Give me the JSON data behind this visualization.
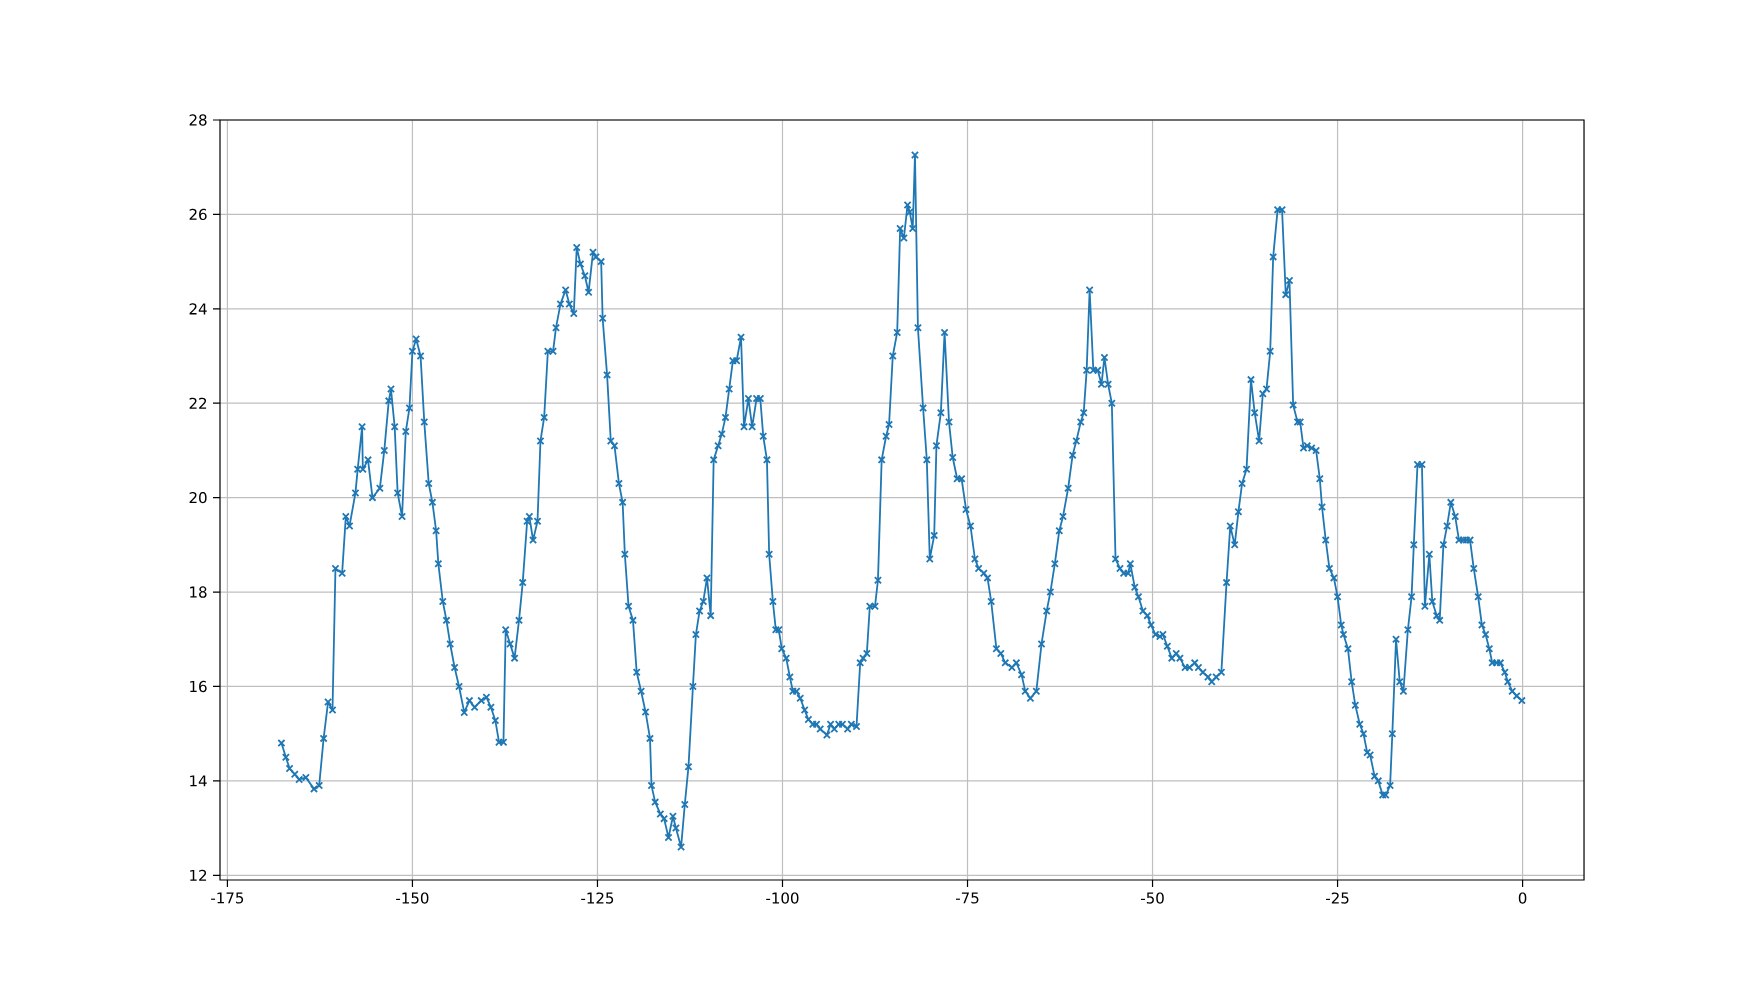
{
  "chart_data": {
    "type": "line",
    "color": "#1f77b4",
    "marker": "cross",
    "grid": true,
    "xlim": [
      -176,
      8.3
    ],
    "ylim": [
      11.9,
      28
    ],
    "xticks": [
      -175,
      -150,
      -125,
      -100,
      -75,
      -50,
      -25,
      0
    ],
    "yticks": [
      12,
      14,
      16,
      18,
      20,
      22,
      24,
      26,
      28
    ],
    "x": [
      -167.7,
      -167.1,
      -166.6,
      -165.9,
      -165.3,
      -164.4,
      -163.3,
      -162.6,
      -162.0,
      -161.4,
      -160.8,
      -160.4,
      -159.5,
      -159.0,
      -158.5,
      -157.7,
      -157.4,
      -156.8,
      -156.7,
      -156.0,
      -155.4,
      -154.4,
      -153.8,
      -153.2,
      -152.9,
      -152.4,
      -152.0,
      -151.4,
      -150.9,
      -150.4,
      -150.0,
      -149.5,
      -148.9,
      -148.4,
      -147.8,
      -147.3,
      -146.8,
      -146.5,
      -145.9,
      -145.4,
      -144.9,
      -144.3,
      -143.7,
      -143.0,
      -142.3,
      -141.6,
      -140.7,
      -140.0,
      -139.4,
      -138.8,
      -138.3,
      -137.7,
      -137.4,
      -136.8,
      -136.2,
      -135.6,
      -135.1,
      -134.5,
      -134.2,
      -133.7,
      -133.1,
      -132.7,
      -132.2,
      -131.7,
      -131.0,
      -130.6,
      -130.0,
      -129.3,
      -128.8,
      -128.2,
      -127.8,
      -127.3,
      -126.7,
      -126.2,
      -125.6,
      -125.2,
      -124.5,
      -124.3,
      -123.7,
      -123.2,
      -122.7,
      -122.1,
      -121.6,
      -121.3,
      -120.8,
      -120.2,
      -119.7,
      -119.1,
      -118.5,
      -117.9,
      -117.7,
      -117.2,
      -116.5,
      -116.0,
      -115.4,
      -114.8,
      -114.4,
      -113.7,
      -113.2,
      -112.7,
      -112.1,
      -111.7,
      -111.2,
      -110.7,
      -110.2,
      -109.7,
      -109.3,
      -108.7,
      -108.2,
      -107.7,
      -107.2,
      -106.7,
      -106.2,
      -105.6,
      -105.2,
      -104.6,
      -104.1,
      -103.5,
      -103.0,
      -102.6,
      -102.1,
      -101.8,
      -101.3,
      -100.9,
      -100.5,
      -100.1,
      -99.5,
      -99.0,
      -98.6,
      -98.1,
      -97.6,
      -97.0,
      -96.5,
      -95.9,
      -95.4,
      -94.9,
      -94.0,
      -93.5,
      -93.0,
      -92.4,
      -91.9,
      -91.2,
      -90.7,
      -90.0,
      -89.5,
      -89.1,
      -88.6,
      -88.2,
      -87.5,
      -87.1,
      -86.6,
      -86.0,
      -85.6,
      -85.1,
      -84.5,
      -84.1,
      -83.6,
      -83.1,
      -82.8,
      -82.4,
      -82.1,
      -81.7,
      -81.0,
      -80.5,
      -80.1,
      -79.5,
      -79.2,
      -78.6,
      -78.1,
      -77.5,
      -77.0,
      -76.4,
      -75.8,
      -75.2,
      -74.6,
      -74.0,
      -73.5,
      -72.8,
      -72.3,
      -71.8,
      -71.1,
      -70.5,
      -69.9,
      -69.0,
      -68.4,
      -67.7,
      -67.2,
      -66.5,
      -65.7,
      -65.0,
      -64.3,
      -63.8,
      -63.2,
      -62.6,
      -62.1,
      -61.4,
      -60.8,
      -60.3,
      -59.7,
      -59.3,
      -58.9,
      -58.5,
      -58.0,
      -57.4,
      -56.9,
      -56.5,
      -56.0,
      -55.5,
      -55.0,
      -54.4,
      -53.9,
      -53.3,
      -53.0,
      -52.4,
      -51.9,
      -51.3,
      -50.7,
      -50.2,
      -49.6,
      -49.0,
      -48.6,
      -48.0,
      -47.4,
      -46.8,
      -46.3,
      -45.6,
      -45.0,
      -44.3,
      -43.8,
      -43.2,
      -42.5,
      -42.0,
      -41.4,
      -40.7,
      -40.0,
      -39.5,
      -38.9,
      -38.4,
      -37.9,
      -37.3,
      -36.7,
      -36.2,
      -35.6,
      -35.1,
      -34.6,
      -34.1,
      -33.7,
      -33.1,
      -32.5,
      -32.0,
      -31.5,
      -31.0,
      -30.4,
      -30.05,
      -29.6,
      -29.1,
      -28.5,
      -27.9,
      -27.4,
      -27.1,
      -26.6,
      -26.1,
      -25.5,
      -25.0,
      -24.5,
      -24.2,
      -23.6,
      -23.1,
      -22.6,
      -22.0,
      -21.5,
      -21.0,
      -20.6,
      -20.0,
      -19.5,
      -18.9,
      -18.5,
      -17.9,
      -17.6,
      -17.1,
      -16.6,
      -16.1,
      -15.5,
      -15.0,
      -14.7,
      -14.2,
      -13.6,
      -13.2,
      -12.6,
      -12.2,
      -11.6,
      -11.2,
      -10.7,
      -10.2,
      -9.7,
      -9.1,
      -8.6,
      -8.0,
      -7.6,
      -7.1,
      -6.6,
      -6.0,
      -5.5,
      -5.0,
      -4.5,
      -4.1,
      -3.5,
      -3.0,
      -2.4,
      -2.0,
      -1.4,
      -0.8,
      -0.1
    ],
    "values": [
      14.8,
      14.5,
      14.26,
      14.14,
      14.03,
      14.07,
      13.83,
      13.9,
      14.9,
      15.67,
      15.5,
      18.5,
      18.4,
      19.6,
      19.4,
      20.1,
      20.6,
      21.5,
      20.6,
      20.8,
      20.0,
      20.2,
      21.0,
      22.05,
      22.3,
      21.5,
      20.1,
      19.6,
      21.4,
      21.9,
      23.1,
      23.36,
      23.0,
      21.6,
      20.3,
      19.9,
      19.3,
      18.6,
      17.8,
      17.4,
      16.9,
      16.4,
      16.0,
      15.45,
      15.7,
      15.56,
      15.7,
      15.77,
      15.56,
      15.28,
      14.82,
      14.82,
      17.2,
      16.9,
      16.6,
      17.4,
      18.2,
      19.5,
      19.6,
      19.1,
      19.5,
      21.2,
      21.7,
      23.1,
      23.1,
      23.6,
      24.1,
      24.4,
      24.1,
      23.9,
      25.3,
      24.95,
      24.7,
      24.35,
      25.2,
      25.1,
      25.0,
      23.8,
      22.6,
      21.2,
      21.1,
      20.3,
      19.9,
      18.8,
      17.7,
      17.4,
      16.3,
      15.9,
      15.46,
      14.9,
      13.9,
      13.55,
      13.3,
      13.2,
      12.8,
      13.25,
      13.0,
      12.6,
      13.5,
      14.3,
      16.0,
      17.1,
      17.6,
      17.8,
      18.3,
      17.5,
      20.8,
      21.1,
      21.35,
      21.7,
      22.3,
      22.9,
      22.9,
      23.4,
      21.5,
      22.1,
      21.5,
      22.1,
      22.1,
      21.3,
      20.8,
      18.8,
      17.8,
      17.2,
      17.2,
      16.8,
      16.6,
      16.2,
      15.9,
      15.9,
      15.75,
      15.5,
      15.3,
      15.2,
      15.2,
      15.1,
      14.97,
      15.2,
      15.1,
      15.2,
      15.2,
      15.1,
      15.2,
      15.15,
      16.5,
      16.6,
      16.7,
      17.7,
      17.7,
      18.25,
      20.8,
      21.3,
      21.55,
      23.0,
      23.5,
      25.7,
      25.5,
      26.2,
      26.05,
      25.7,
      27.26,
      23.6,
      21.9,
      20.8,
      18.7,
      19.2,
      21.1,
      21.8,
      23.5,
      21.6,
      20.85,
      20.4,
      20.4,
      19.75,
      19.4,
      18.7,
      18.5,
      18.4,
      18.3,
      17.8,
      16.8,
      16.7,
      16.5,
      16.4,
      16.5,
      16.25,
      15.9,
      15.75,
      15.9,
      16.9,
      17.6,
      18.0,
      18.6,
      19.3,
      19.6,
      20.2,
      20.9,
      21.2,
      21.6,
      21.8,
      22.7,
      24.4,
      22.7,
      22.7,
      22.4,
      22.97,
      22.4,
      22.0,
      18.7,
      18.5,
      18.4,
      18.4,
      18.6,
      18.1,
      17.9,
      17.6,
      17.5,
      17.3,
      17.1,
      17.06,
      17.1,
      16.85,
      16.6,
      16.7,
      16.6,
      16.4,
      16.4,
      16.5,
      16.4,
      16.3,
      16.2,
      16.1,
      16.2,
      16.3,
      18.2,
      19.4,
      19.0,
      19.7,
      20.3,
      20.6,
      22.5,
      21.8,
      21.2,
      22.2,
      22.3,
      23.1,
      25.1,
      26.1,
      26.1,
      24.3,
      24.6,
      21.96,
      21.6,
      21.6,
      21.05,
      21.1,
      21.05,
      21.0,
      20.4,
      19.8,
      19.1,
      18.5,
      18.3,
      17.9,
      17.3,
      17.1,
      16.8,
      16.1,
      15.6,
      15.2,
      15.0,
      14.6,
      14.55,
      14.1,
      14.0,
      13.7,
      13.7,
      13.9,
      15.0,
      17.0,
      16.1,
      15.9,
      17.2,
      17.9,
      19.0,
      20.7,
      20.7,
      17.7,
      18.8,
      17.8,
      17.5,
      17.4,
      19.0,
      19.4,
      19.9,
      19.6,
      19.1,
      19.1,
      19.1,
      19.1,
      18.5,
      17.9,
      17.3,
      17.1,
      16.8,
      16.5,
      16.5,
      16.5,
      16.3,
      16.1,
      15.9,
      15.8,
      15.7
    ]
  }
}
